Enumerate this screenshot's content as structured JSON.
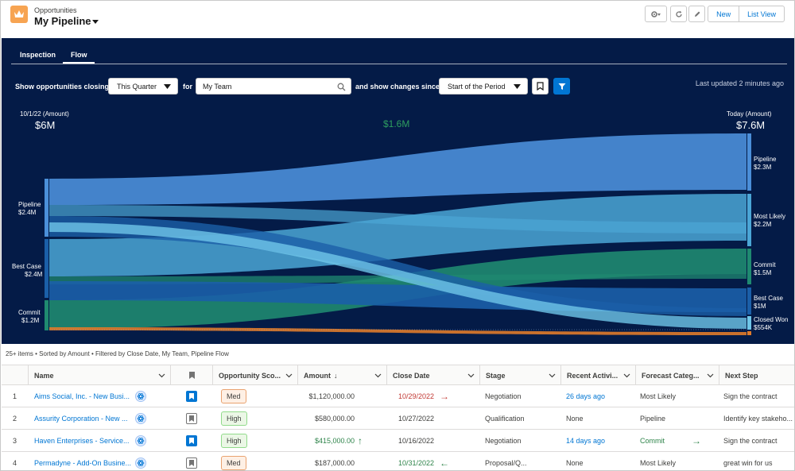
{
  "header": {
    "object_label": "Opportunities",
    "title": "My Pipeline",
    "new_label": "New",
    "list_view_label": "List View"
  },
  "flow": {
    "tabs": [
      {
        "label": "Inspection"
      },
      {
        "label": "Flow"
      }
    ],
    "active_tab": "Flow",
    "show_label": "Show opportunities closing",
    "period_value": "This Quarter",
    "for_label": "for",
    "team_value": "My Team",
    "changes_label": "and show changes since",
    "since_value": "Start of the Period",
    "last_updated": "Last updated 2 minutes ago",
    "left_caption": "10/1/22 (Amount)",
    "left_total": "$6M",
    "center_delta": "$1.6M",
    "right_caption": "Today (Amount)",
    "right_total": "$7.6M",
    "left_nodes": [
      {
        "name": "Pipeline",
        "value": "$2.4M"
      },
      {
        "name": "Best Case",
        "value": "$2.4M"
      },
      {
        "name": "Commit",
        "value": "$1.2M"
      }
    ],
    "right_nodes": [
      {
        "name": "Pipeline",
        "value": "$2.3M"
      },
      {
        "name": "Most Likely",
        "value": "$2.2M"
      },
      {
        "name": "Commit",
        "value": "$1.5M"
      },
      {
        "name": "Best Case",
        "value": "$1M"
      },
      {
        "name": "Closed Won",
        "value": "$554K"
      }
    ],
    "colors": {
      "pipeline": "#4b8fd9",
      "most_likely": "#4ba6d6",
      "commit": "#1f8a70",
      "best_case": "#1b5fa8",
      "closed_won": "#6fc6e8",
      "closed_lost": "#e07b2a"
    }
  },
  "list": {
    "meta": "25+ items • Sorted by Amount • Filtered by Close Date, My Team, Pipeline Flow",
    "columns": [
      "Name",
      "Opportunity Sco...",
      "Amount",
      "Close Date",
      "Stage",
      "Recent Activi...",
      "Forecast Categ...",
      "Next Step"
    ],
    "rows": [
      {
        "num": "1",
        "name": "Aims Social, Inc. - New Busi...",
        "bookmarked": true,
        "score": "Med",
        "amount": "$1,120,000.00",
        "amount_dir": "",
        "close_date": "10/29/2022",
        "date_dir": "right",
        "stage": "Negotiation",
        "recent": "26 days ago",
        "forecast": "Most Likely",
        "forecast_dir": "",
        "next_step": "Sign the contract"
      },
      {
        "num": "2",
        "name": "Assurity Corporation - New ...",
        "bookmarked": false,
        "score": "High",
        "amount": "$580,000.00",
        "amount_dir": "",
        "close_date": "10/27/2022",
        "date_dir": "",
        "stage": "Qualification",
        "recent": "None",
        "forecast": "Pipeline",
        "forecast_dir": "",
        "next_step": "Identify key stakeho..."
      },
      {
        "num": "3",
        "name": "Haven Enterprises - Service...",
        "bookmarked": true,
        "score": "High",
        "amount": "$415,000.00",
        "amount_dir": "up",
        "close_date": "10/16/2022",
        "date_dir": "",
        "stage": "Negotiation",
        "recent": "14 days ago",
        "forecast": "Commit",
        "forecast_dir": "right",
        "next_step": "Sign the contract"
      },
      {
        "num": "4",
        "name": "Permadyne - Add-On Busine...",
        "bookmarked": false,
        "score": "Med",
        "amount": "$187,000.00",
        "amount_dir": "",
        "close_date": "10/31/2022",
        "date_dir": "left",
        "stage": "Proposal/Q...",
        "recent": "None",
        "forecast": "Most Likely",
        "forecast_dir": "",
        "next_step": "great win for us"
      }
    ]
  }
}
